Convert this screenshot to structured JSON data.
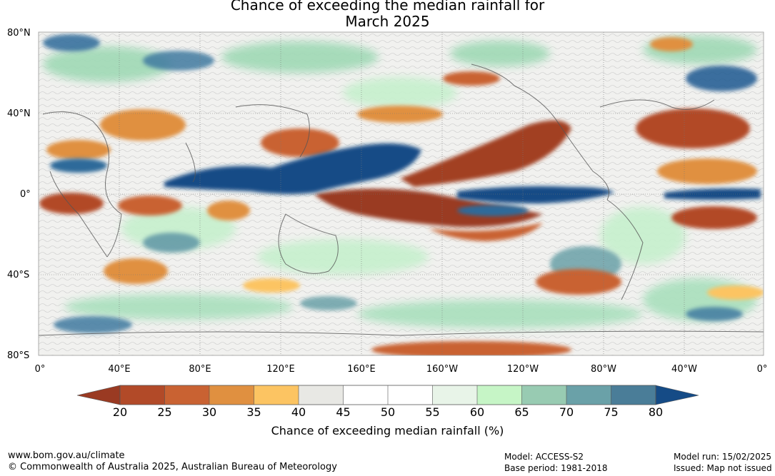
{
  "title": {
    "line1": "Chance of exceeding the median rainfall for",
    "line2": "March 2025"
  },
  "map": {
    "latitude_labels": [
      "80°N",
      "40°N",
      "0°",
      "40°S",
      "80°S"
    ],
    "longitude_labels": [
      "0°",
      "40°E",
      "80°E",
      "120°E",
      "160°E",
      "160°W",
      "120°W",
      "80°W",
      "40°W",
      "0°"
    ],
    "field_regions": [
      {
        "region": "Maritime Continent / Indian Ocean",
        "chance_pct": ">80"
      },
      {
        "region": "Equatorial eastern Pacific",
        "chance_pct": ">80"
      },
      {
        "region": "Equatorial central Pacific",
        "chance_pct": "<20"
      },
      {
        "region": "Northeast Pacific",
        "chance_pct": "<25"
      },
      {
        "region": "Equatorial Atlantic",
        "chance_pct": ">80"
      },
      {
        "region": "Southeastern North America",
        "chance_pct": "<30"
      }
    ]
  },
  "colorbar": {
    "ticks": [
      "20",
      "25",
      "30",
      "35",
      "40",
      "45",
      "50",
      "55",
      "60",
      "65",
      "70",
      "75",
      "80"
    ],
    "colors": [
      "#9a3a22",
      "#b24a28",
      "#c96232",
      "#e09040",
      "#fcc462",
      "#e8e8e4",
      "#ffffff",
      "#ffffff",
      "#e8f4e8",
      "#c6f5c6",
      "#98cbb2",
      "#6aa1a8",
      "#4a7d98",
      "#154b86"
    ],
    "label": "Chance of exceeding median rainfall (%)"
  },
  "footer": {
    "url": "www.bom.gov.au/climate",
    "copyright": "© Commonwealth of Australia 2025, Australian Bureau of Meteorology",
    "model": "Model: ACCESS-S2",
    "base_period": "Base period: 1981-2018",
    "model_run": "Model run: 15/02/2025",
    "issued": "Issued: Map not issued"
  }
}
